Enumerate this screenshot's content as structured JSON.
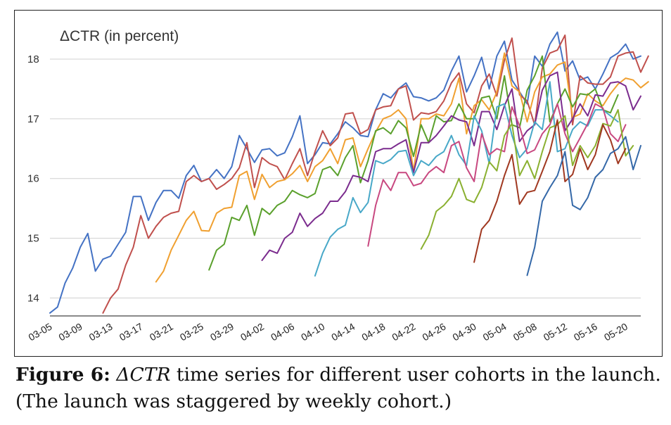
{
  "chart_data": {
    "type": "line",
    "title": "ΔCTR (in percent)",
    "xlabel": "",
    "ylabel": "",
    "ylim": [
      13.7,
      18.6
    ],
    "yticks": [
      14,
      15,
      16,
      17,
      18
    ],
    "x_start": "03-05",
    "x_ticks": [
      "03-05",
      "03-09",
      "03-13",
      "03-17",
      "03-21",
      "03-25",
      "03-29",
      "04-02",
      "04-06",
      "04-10",
      "04-14",
      "04-18",
      "04-22",
      "04-26",
      "04-30",
      "05-04",
      "05-08",
      "05-12",
      "05-16",
      "05-20"
    ],
    "grid": true,
    "legend": "none",
    "colors": [
      "#4472c4",
      "#c0504d",
      "#f0a030",
      "#5aa02c",
      "#7b2c8e",
      "#48a8c8",
      "#c84880",
      "#8ab030",
      "#a03820",
      "#3468a8"
    ],
    "series": [
      {
        "start_index": 0,
        "values": [
          13.75,
          13.85,
          14.25,
          14.5,
          14.85,
          15.08,
          14.45,
          14.65,
          14.7,
          14.9,
          15.1,
          15.7,
          15.7,
          15.3,
          15.6,
          15.8,
          15.8,
          15.67,
          16.05,
          16.22,
          15.95,
          16.0,
          16.15,
          16.0,
          16.2,
          16.72,
          16.5,
          16.27,
          16.48,
          16.5,
          16.38,
          16.43,
          16.7,
          17.05,
          16.25,
          16.4,
          16.6,
          16.58,
          16.75,
          16.95,
          16.85,
          16.72,
          16.7,
          17.15,
          17.42,
          17.35,
          17.5,
          17.6,
          17.37,
          17.35,
          17.3,
          17.35,
          17.48,
          17.8,
          18.05,
          17.45,
          17.72,
          18.03,
          17.5,
          18.05,
          18.3,
          17.65,
          17.45,
          17.25,
          18.05,
          17.88,
          18.25,
          18.45,
          17.8,
          17.97,
          17.65,
          17.7,
          17.5,
          17.75,
          18.02,
          18.1,
          18.25,
          18.0,
          18.05
        ]
      },
      {
        "start_index": 7,
        "values": [
          13.75,
          14.0,
          14.15,
          14.55,
          14.85,
          15.38,
          15.0,
          15.2,
          15.35,
          15.42,
          15.45,
          15.95,
          16.05,
          15.95,
          16.0,
          15.82,
          15.9,
          16.0,
          16.18,
          16.6,
          15.85,
          16.35,
          16.25,
          16.2,
          15.98,
          16.25,
          16.5,
          16.05,
          16.45,
          16.8,
          16.55,
          16.68,
          17.08,
          17.1,
          16.75,
          16.82,
          17.15,
          17.2,
          17.22,
          17.5,
          17.55,
          16.98,
          17.1,
          17.08,
          17.12,
          17.3,
          17.6,
          17.77,
          17.25,
          17.1,
          17.55,
          17.75,
          17.38,
          17.98,
          18.35,
          17.4,
          17.3,
          16.9,
          17.85,
          18.1,
          18.15,
          18.4,
          16.9,
          17.72,
          17.6,
          17.58,
          17.58,
          17.7,
          18.05,
          18.1,
          18.12,
          17.78,
          18.05
        ]
      },
      {
        "start_index": 14,
        "values": [
          14.27,
          14.45,
          14.8,
          15.05,
          15.3,
          15.45,
          15.13,
          15.12,
          15.42,
          15.5,
          15.52,
          16.05,
          16.12,
          15.65,
          16.07,
          15.85,
          15.95,
          15.98,
          16.08,
          16.22,
          15.95,
          16.2,
          16.3,
          16.5,
          16.25,
          16.65,
          16.68,
          16.2,
          16.5,
          16.78,
          17.0,
          17.05,
          17.15,
          17.0,
          16.12,
          17.0,
          17.0,
          17.08,
          17.05,
          17.25,
          17.68,
          16.75,
          17.22,
          17.32,
          17.15,
          17.45,
          18.1,
          17.55,
          17.45,
          16.95,
          17.45,
          17.7,
          17.75,
          17.9,
          17.95,
          17.02,
          17.08,
          17.42,
          17.3,
          17.22,
          17.42,
          17.58,
          17.68,
          17.65,
          17.52,
          17.62
        ]
      },
      {
        "start_index": 21,
        "values": [
          14.47,
          14.8,
          14.9,
          15.35,
          15.3,
          15.55,
          15.05,
          15.5,
          15.4,
          15.55,
          15.62,
          15.8,
          15.73,
          15.68,
          15.75,
          16.15,
          16.2,
          16.05,
          16.35,
          16.55,
          15.93,
          16.3,
          16.8,
          16.85,
          16.75,
          16.97,
          16.85,
          16.37,
          16.9,
          16.6,
          17.05,
          16.95,
          16.97,
          17.25,
          17.0,
          17.0,
          17.35,
          17.38,
          17.0,
          17.72,
          16.9,
          16.85,
          17.48,
          17.72,
          18.05,
          16.95,
          17.25,
          17.5,
          17.2,
          17.42,
          17.4,
          17.5,
          17.15,
          17.1,
          17.4
        ]
      },
      {
        "start_index": 28,
        "values": [
          14.63,
          14.8,
          14.75,
          15.0,
          15.1,
          15.42,
          15.2,
          15.33,
          15.42,
          15.62,
          15.62,
          15.78,
          16.05,
          16.02,
          15.95,
          16.45,
          16.5,
          16.5,
          16.58,
          16.65,
          16.1,
          16.6,
          16.6,
          16.72,
          16.88,
          17.05,
          16.98,
          16.95,
          16.55,
          17.12,
          17.12,
          16.82,
          17.22,
          17.5,
          16.62,
          16.8,
          16.9,
          17.48,
          17.72,
          17.78,
          16.8,
          17.0,
          17.25,
          17.05,
          17.4,
          17.38,
          17.6,
          17.62,
          17.55,
          17.15,
          17.38
        ]
      },
      {
        "start_index": 35,
        "values": [
          14.37,
          14.75,
          15.02,
          15.15,
          15.22,
          15.68,
          15.43,
          15.6,
          16.3,
          16.25,
          16.32,
          16.45,
          16.47,
          16.05,
          16.3,
          16.22,
          16.37,
          16.45,
          16.72,
          16.4,
          16.22,
          17.05,
          16.8,
          16.25,
          17.2,
          17.25,
          16.72,
          16.35,
          16.5,
          16.95,
          16.82,
          17.62,
          16.45,
          16.5,
          16.82,
          16.95,
          16.88,
          17.15,
          17.15,
          17.05,
          16.95
        ]
      },
      {
        "start_index": 42,
        "values": [
          14.87,
          15.55,
          15.98,
          15.8,
          16.1,
          16.1,
          15.88,
          15.92,
          16.1,
          16.2,
          16.1,
          16.55,
          16.62,
          16.18,
          15.95,
          16.75,
          16.4,
          16.5,
          16.45,
          17.2,
          16.88,
          16.42,
          16.48,
          16.75,
          16.9,
          17.25,
          16.75,
          16.45,
          16.68,
          16.92,
          17.25,
          17.18,
          16.75,
          16.62,
          16.9
        ]
      },
      {
        "start_index": 49,
        "values": [
          14.82,
          15.05,
          15.45,
          15.55,
          15.7,
          16.0,
          15.65,
          15.6,
          15.85,
          16.28,
          16.13,
          16.72,
          16.92,
          16.05,
          16.3,
          16.0,
          16.45,
          16.85,
          16.9,
          17.05,
          16.22,
          16.55,
          16.35,
          16.55,
          16.92,
          16.88,
          17.15,
          16.38,
          16.55
        ]
      },
      {
        "start_index": 56,
        "values": [
          14.6,
          15.15,
          15.3,
          15.62,
          16.05,
          16.4,
          15.57,
          15.77,
          15.8,
          16.12,
          16.45,
          16.98,
          15.95,
          16.07,
          16.5,
          16.15,
          16.4,
          16.9,
          16.65,
          16.25,
          16.5
        ]
      },
      {
        "start_index": 63,
        "values": [
          14.38,
          14.85,
          15.62,
          15.85,
          16.05,
          16.45,
          15.55,
          15.48,
          15.68,
          16.02,
          16.15,
          16.42,
          16.5,
          16.7,
          16.15,
          16.55
        ]
      }
    ]
  },
  "caption": {
    "label": "Figure 6:",
    "math": "ΔCTR",
    "text": " time series for different user cohorts in the launch. (The launch was staggered by weekly cohort.)"
  }
}
